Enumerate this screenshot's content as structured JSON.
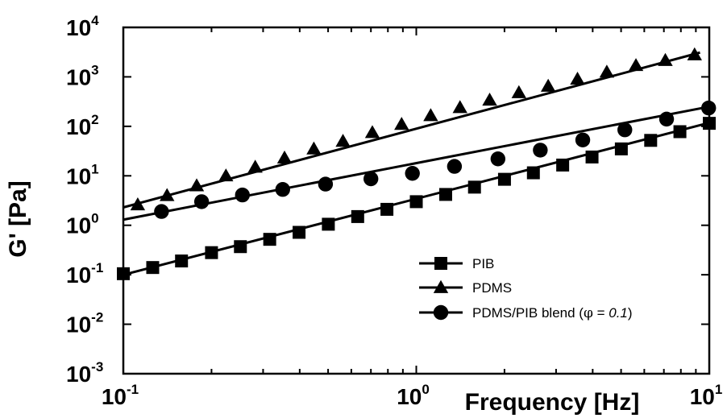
{
  "chart_data": {
    "type": "line",
    "title": "",
    "xlabel": "Frequency [Hz]",
    "ylabel": "G' [Pa]",
    "xscale": "log",
    "yscale": "log",
    "xlim": [
      0.1,
      10
    ],
    "ylim": [
      0.001,
      10000
    ],
    "x_ticks": [
      {
        "base": "10",
        "exp": "-1",
        "value": 0.1
      },
      {
        "base": "10",
        "exp": "0",
        "value": 1
      },
      {
        "base": "10",
        "exp": "1",
        "value": 10
      }
    ],
    "y_ticks": [
      {
        "base": "10",
        "exp": "-3",
        "value": 0.001
      },
      {
        "base": "10",
        "exp": "-2",
        "value": 0.01
      },
      {
        "base": "10",
        "exp": "-1",
        "value": 0.1
      },
      {
        "base": "10",
        "exp": "0",
        "value": 1
      },
      {
        "base": "10",
        "exp": "1",
        "value": 10
      },
      {
        "base": "10",
        "exp": "2",
        "value": 100
      },
      {
        "base": "10",
        "exp": "3",
        "value": 1000
      },
      {
        "base": "10",
        "exp": "4",
        "value": 10000
      }
    ],
    "grid": false,
    "legend_position": "bottom-right",
    "series": [
      {
        "name": "PIB",
        "marker": "square",
        "x": [
          0.1,
          0.126,
          0.158,
          0.2,
          0.251,
          0.316,
          0.398,
          0.501,
          0.631,
          0.794,
          1.0,
          1.26,
          1.58,
          2.0,
          2.51,
          3.16,
          3.98,
          5.01,
          6.31,
          7.94,
          10.0
        ],
        "y": [
          0.105,
          0.14,
          0.19,
          0.28,
          0.37,
          0.52,
          0.72,
          1.05,
          1.5,
          2.1,
          3.0,
          4.2,
          5.9,
          8.5,
          11.5,
          16.5,
          24,
          35,
          52,
          78,
          115
        ]
      },
      {
        "name": "PDMS",
        "marker": "triangle",
        "x": [
          0.112,
          0.141,
          0.178,
          0.224,
          0.282,
          0.355,
          0.447,
          0.562,
          0.708,
          0.891,
          1.12,
          1.41,
          1.78,
          2.24,
          2.82,
          3.55,
          4.47,
          5.62,
          7.08,
          8.91
        ],
        "y": [
          2.6,
          4.0,
          6.3,
          10,
          15,
          23,
          35,
          50,
          75,
          110,
          165,
          240,
          340,
          480,
          650,
          900,
          1250,
          1700,
          2150,
          2800
        ]
      },
      {
        "name": "PDMS/PIB blend (φ = 0.1)",
        "name_parts": {
          "main": "PDMS/PIB blend (",
          "phi": "φ",
          "eq": " = ",
          "val": "0.1",
          "close": ")"
        },
        "marker": "circle",
        "x": [
          0.135,
          0.185,
          0.255,
          0.35,
          0.49,
          0.7,
          0.97,
          1.35,
          1.9,
          2.65,
          3.7,
          5.15,
          7.15,
          9.95
        ],
        "y": [
          1.9,
          3.0,
          4.1,
          5.3,
          6.8,
          8.7,
          11.2,
          15.5,
          22,
          33,
          53,
          85,
          140,
          235
        ]
      }
    ],
    "line_fit_endpoints": {
      "PIB": {
        "x": [
          0.1,
          10.0
        ],
        "y": [
          0.1,
          118
        ]
      },
      "PDMS": {
        "x": [
          0.1,
          9.3
        ],
        "y": [
          2.3,
          3100
        ]
      },
      "PDMS/PIB blend (φ = 0.1)": {
        "x": [
          0.1,
          10.0
        ],
        "y": [
          1.3,
          250
        ]
      }
    }
  }
}
